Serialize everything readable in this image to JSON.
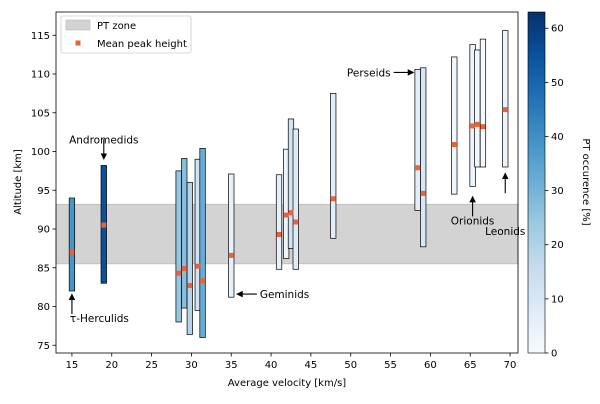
{
  "chart_data": {
    "type": "range-bar",
    "title": "",
    "xlabel": "Average velocity [km/s]",
    "ylabel": "Altitude [km]",
    "xlim": [
      13,
      71
    ],
    "ylim": [
      74,
      118
    ],
    "xticks": [
      15,
      20,
      25,
      30,
      35,
      40,
      45,
      50,
      55,
      60,
      65,
      70
    ],
    "yticks": [
      75,
      80,
      85,
      90,
      95,
      100,
      105,
      110,
      115
    ],
    "pt_zone": {
      "ymin": 85.5,
      "ymax": 93.2,
      "label": "PT zone"
    },
    "legend": {
      "position": "top-left",
      "zone_label": "PT zone",
      "peak_label": "Mean peak height"
    },
    "colorbar": {
      "label": "PT occurence [%]",
      "min": 0,
      "max": 63,
      "ticks": [
        0,
        10,
        20,
        30,
        40,
        50,
        60
      ]
    },
    "colors": {
      "zone": "#d3d3d3",
      "peak": "#e8603c",
      "cmap_low": "#f7fbff",
      "cmap_high": "#08306b"
    },
    "showers": [
      {
        "v": 15.0,
        "low": 82.0,
        "high": 94.0,
        "peak": 87.0,
        "occ": 38
      },
      {
        "v": 19.0,
        "low": 83.0,
        "high": 98.2,
        "peak": 90.5,
        "occ": 55
      },
      {
        "v": 28.4,
        "low": 78.0,
        "high": 97.5,
        "peak": 84.3,
        "occ": 25
      },
      {
        "v": 29.1,
        "low": 79.8,
        "high": 99.1,
        "peak": 84.9,
        "occ": 27
      },
      {
        "v": 29.8,
        "low": 76.4,
        "high": 96.0,
        "peak": 82.7,
        "occ": 19
      },
      {
        "v": 30.8,
        "low": 79.5,
        "high": 99.0,
        "peak": 85.2,
        "occ": 12
      },
      {
        "v": 31.4,
        "low": 76.0,
        "high": 100.4,
        "peak": 83.3,
        "occ": 32
      },
      {
        "v": 35.0,
        "low": 81.2,
        "high": 97.1,
        "peak": 86.6,
        "occ": 5
      },
      {
        "v": 41.0,
        "low": 84.8,
        "high": 97.0,
        "peak": 89.3,
        "occ": 5
      },
      {
        "v": 41.9,
        "low": 86.2,
        "high": 100.3,
        "peak": 91.8,
        "occ": 3
      },
      {
        "v": 42.5,
        "low": 87.5,
        "high": 104.2,
        "peak": 92.1,
        "occ": 12
      },
      {
        "v": 43.1,
        "low": 84.8,
        "high": 102.9,
        "peak": 90.9,
        "occ": 8
      },
      {
        "v": 47.8,
        "low": 88.8,
        "high": 107.5,
        "peak": 93.9,
        "occ": 7
      },
      {
        "v": 58.4,
        "low": 92.4,
        "high": 110.6,
        "peak": 97.9,
        "occ": 7
      },
      {
        "v": 59.1,
        "low": 87.7,
        "high": 110.8,
        "peak": 94.6,
        "occ": 10
      },
      {
        "v": 63.0,
        "low": 94.5,
        "high": 112.2,
        "peak": 100.9,
        "occ": 2
      },
      {
        "v": 65.3,
        "low": 95.5,
        "high": 113.8,
        "peak": 103.3,
        "occ": 3
      },
      {
        "v": 65.9,
        "low": 98.0,
        "high": 113.1,
        "peak": 103.5,
        "occ": 2
      },
      {
        "v": 66.6,
        "low": 98.0,
        "high": 114.5,
        "peak": 103.2,
        "occ": 1
      },
      {
        "v": 69.4,
        "low": 98.0,
        "high": 115.6,
        "peak": 105.4,
        "occ": 3
      }
    ],
    "annotations": [
      {
        "text": "Andromedids",
        "v": 19.0,
        "y": 99.0,
        "dir": "down",
        "anchor": "middle",
        "label_dy": -16
      },
      {
        "text": "τ-Herculids",
        "v": 15.0,
        "y": 81.6,
        "dir": "up",
        "anchor": "start",
        "label_dy": 28
      },
      {
        "text": "Geminids",
        "v": 35.7,
        "y": 81.6,
        "dir": "left",
        "anchor": "start",
        "label_dy": 0
      },
      {
        "text": "Perseids",
        "v": 57.9,
        "y": 110.2,
        "dir": "right",
        "anchor": "end",
        "label_dy": 0
      },
      {
        "text": "Orionids",
        "v": 65.3,
        "y": 94.2,
        "dir": "up",
        "anchor": "middle",
        "label_dy": 28
      },
      {
        "text": "Leonids",
        "v": 69.4,
        "y": 97.2,
        "dir": "up",
        "anchor": "middle",
        "label_dy": 62
      }
    ]
  }
}
